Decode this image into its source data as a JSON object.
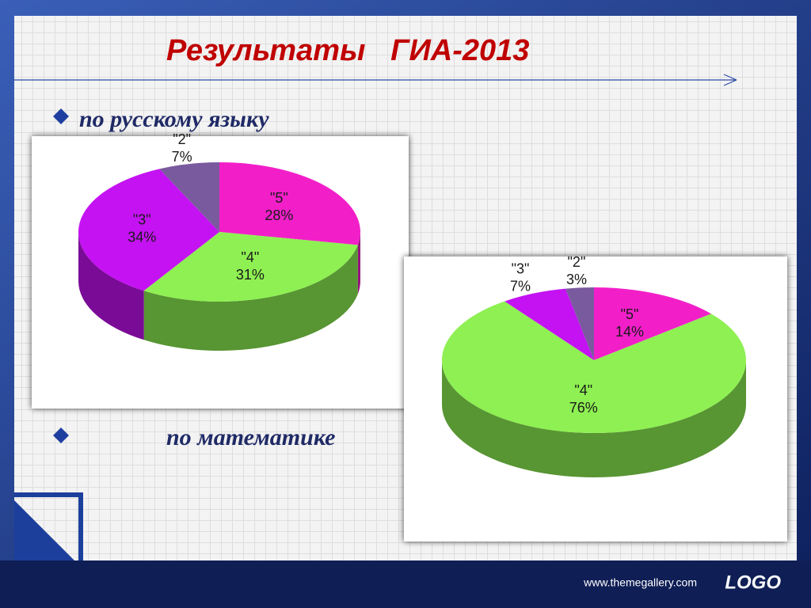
{
  "title": "Результаты   ГИА-2013",
  "footer": {
    "url": "www.themegallery.com",
    "logo": "LOGO"
  },
  "chart_data": [
    {
      "type": "pie",
      "title": "по русскому языку",
      "categories": [
        "\"5\"",
        "\"4\"",
        "\"3\"",
        "\"2\""
      ],
      "values": [
        28,
        31,
        34,
        7
      ],
      "value_labels": [
        "28%",
        "31%",
        "34%",
        "7%"
      ],
      "colors": [
        "#f21fc9",
        "#8ef052",
        "#c412f2",
        "#7a5a9e"
      ]
    },
    {
      "type": "pie",
      "title": "по математике",
      "categories": [
        "\"5\"",
        "\"4\"",
        "\"3\"",
        "\"2\""
      ],
      "values": [
        14,
        76,
        7,
        3
      ],
      "value_labels": [
        "14%",
        "76%",
        "7%",
        "3%"
      ],
      "colors": [
        "#f21fc9",
        "#8ef052",
        "#c412f2",
        "#7a5a9e"
      ]
    }
  ]
}
